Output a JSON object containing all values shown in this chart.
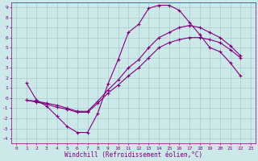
{
  "background_color": "#cce8e8",
  "line_color": "#800080",
  "grid_color": "#aacccc",
  "xlabel": "Windchill (Refroidissement éolien,°C)",
  "xlabel_color": "#800080",
  "tick_color": "#800080",
  "xlim": [
    -0.5,
    23.5
  ],
  "ylim": [
    -4.5,
    9.5
  ],
  "xticks": [
    0,
    1,
    2,
    3,
    4,
    5,
    6,
    7,
    8,
    9,
    10,
    11,
    12,
    13,
    14,
    15,
    16,
    17,
    18,
    19,
    20,
    21,
    22,
    23
  ],
  "yticks": [
    -4,
    -3,
    -2,
    -1,
    0,
    1,
    2,
    3,
    4,
    5,
    6,
    7,
    8,
    9
  ],
  "line1_x": [
    1,
    2,
    3,
    4,
    5,
    6,
    7,
    8,
    9,
    10,
    11,
    12,
    13,
    14,
    15,
    16,
    17,
    18,
    19,
    20,
    21,
    22
  ],
  "line1_y": [
    1.5,
    -0.2,
    -0.8,
    -1.8,
    -2.8,
    -3.4,
    -3.4,
    -1.5,
    1.4,
    3.8,
    6.5,
    7.3,
    8.9,
    9.2,
    9.2,
    8.7,
    7.5,
    6.3,
    5.0,
    4.6,
    3.5,
    2.2
  ],
  "line2_x": [
    1,
    2,
    3,
    4,
    5,
    6,
    7,
    8,
    9,
    10,
    11,
    12,
    13,
    14,
    15,
    16,
    17,
    18,
    19,
    20,
    21,
    22
  ],
  "line2_y": [
    -0.2,
    -0.4,
    -0.6,
    -0.9,
    -1.1,
    -1.4,
    -1.4,
    -0.5,
    0.5,
    1.3,
    2.2,
    3.0,
    4.0,
    5.0,
    5.5,
    5.8,
    6.0,
    6.0,
    5.8,
    5.5,
    4.8,
    4.0
  ],
  "line3_x": [
    1,
    2,
    3,
    4,
    5,
    6,
    7,
    8,
    9,
    10,
    11,
    12,
    13,
    14,
    15,
    16,
    17,
    18,
    19,
    20,
    21,
    22
  ],
  "line3_y": [
    -0.2,
    -0.3,
    -0.5,
    -0.7,
    -1.0,
    -1.3,
    -1.3,
    -0.3,
    0.8,
    1.8,
    3.0,
    3.8,
    5.0,
    6.0,
    6.5,
    7.0,
    7.2,
    7.0,
    6.5,
    6.0,
    5.2,
    4.2
  ]
}
